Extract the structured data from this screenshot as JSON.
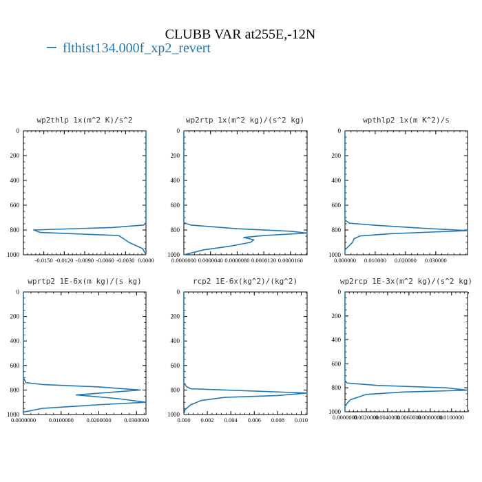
{
  "figure": {
    "title": "CLUBB VAR at255E,-12N",
    "legend": {
      "label": "flthist134.000f_xp2_revert",
      "color": "#1f77b4"
    }
  },
  "chart_data": [
    {
      "type": "line",
      "title": "wp2thlp  1x(m^2 K)/s^2",
      "series": [
        {
          "name": "flthist134.000f_xp2_revert",
          "points": [
            [
              0.0,
              0
            ],
            [
              0.0,
              200
            ],
            [
              0.0,
              400
            ],
            [
              0.0,
              600
            ],
            [
              0.0,
              740
            ],
            [
              -0.0003,
              760
            ],
            [
              -0.005,
              780
            ],
            [
              -0.0165,
              800
            ],
            [
              -0.0155,
              820
            ],
            [
              -0.004,
              845
            ],
            [
              -0.0033,
              870
            ],
            [
              -0.0025,
              900
            ],
            [
              -0.0005,
              950
            ],
            [
              0.0,
              1000
            ]
          ]
        }
      ],
      "xlim": [
        -0.018,
        0.0
      ],
      "ylim": [
        1000,
        0
      ],
      "xticks": [
        "-0.0150",
        "-0.0120",
        "-0.0090",
        "-0.0060",
        "-0.0030",
        "0.0000"
      ],
      "xtick_values": [
        -0.015,
        -0.012,
        -0.009,
        -0.006,
        -0.003,
        0.0
      ],
      "yticks": [
        "0",
        "200",
        "400",
        "600",
        "800",
        "1000"
      ],
      "ytick_values": [
        0,
        200,
        400,
        600,
        800,
        1000
      ]
    },
    {
      "type": "line",
      "title": "wp2rtp  1x(m^2 kg)/(s^2 kg)",
      "series": [
        {
          "name": "flthist134.000f_xp2_revert",
          "points": [
            [
              0.0,
              0
            ],
            [
              0.0,
              600
            ],
            [
              0.0,
              740
            ],
            [
              1e-06,
              760
            ],
            [
              8e-06,
              790
            ],
            [
              1.6e-05,
              810
            ],
            [
              1.85e-05,
              825
            ],
            [
              1.2e-05,
              845
            ],
            [
              9e-06,
              860
            ],
            [
              1.05e-05,
              880
            ],
            [
              1e-05,
              900
            ],
            [
              7e-06,
              930
            ],
            [
              3e-06,
              960
            ],
            [
              0.0,
              1000
            ]
          ]
        }
      ],
      "xlim": [
        0.0,
        1.85e-05
      ],
      "ylim": [
        1000,
        0
      ],
      "xticks": [
        "0.0000000",
        "0.0000040",
        "0.0000080",
        "0.0000120",
        "0.0000160"
      ],
      "xtick_values": [
        0.0,
        4e-06,
        8e-06,
        1.2e-05,
        1.6e-05
      ],
      "yticks": [
        "0",
        "200",
        "400",
        "600",
        "800",
        "1000"
      ],
      "ytick_values": [
        0,
        200,
        400,
        600,
        800,
        1000
      ]
    },
    {
      "type": "line",
      "title": "wpthlp2  1x(m K^2)/s",
      "series": [
        {
          "name": "flthist134.000f_xp2_revert",
          "points": [
            [
              0.0,
              0
            ],
            [
              0.0,
              600
            ],
            [
              0.0,
              720
            ],
            [
              0.0015,
              745
            ],
            [
              0.009,
              760
            ],
            [
              0.025,
              785
            ],
            [
              0.0405,
              805
            ],
            [
              0.015,
              830
            ],
            [
              0.005,
              848
            ],
            [
              0.003,
              870
            ],
            [
              0.0025,
              900
            ],
            [
              0.0,
              960
            ],
            [
              0.0,
              1000
            ]
          ]
        }
      ],
      "xlim": [
        0.0,
        0.0405
      ],
      "ylim": [
        1000,
        0
      ],
      "xticks": [
        "0.000000",
        "0.010000",
        "0.020000",
        "0.030000"
      ],
      "xtick_values": [
        0.0,
        0.01,
        0.02,
        0.03
      ],
      "yticks": [
        "0",
        "200",
        "400",
        "600",
        "800",
        "1000"
      ],
      "ytick_values": [
        0,
        200,
        400,
        600,
        800,
        1000
      ]
    },
    {
      "type": "line",
      "title": "wprtp2  1E-6x(m kg)/(s kg)",
      "series": [
        {
          "name": "flthist134.000f_xp2_revert",
          "points": [
            [
              0.0,
              0
            ],
            [
              0.0,
              600
            ],
            [
              0.0,
              700
            ],
            [
              0.0007,
              740
            ],
            [
              0.005,
              755
            ],
            [
              0.02,
              775
            ],
            [
              0.031,
              800
            ],
            [
              0.014,
              840
            ],
            [
              0.025,
              870
            ],
            [
              0.0325,
              900
            ],
            [
              0.02,
              920
            ],
            [
              0.005,
              950
            ],
            [
              0.0,
              980
            ],
            [
              0.0,
              1000
            ]
          ]
        }
      ],
      "xlim": [
        0.0,
        0.0325
      ],
      "ylim": [
        1000,
        0
      ],
      "xticks": [
        "0.0000000",
        "0.0100000",
        "0.0200000",
        "0.0300000"
      ],
      "xtick_values": [
        0.0,
        0.01,
        0.02,
        0.03
      ],
      "yticks": [
        "0",
        "200",
        "400",
        "600",
        "800",
        "1000"
      ],
      "ytick_values": [
        0,
        200,
        400,
        600,
        800,
        1000
      ]
    },
    {
      "type": "line",
      "title": "rcp2  1E-6x(kg^2)/(kg^2)",
      "series": [
        {
          "name": "flthist134.000f_xp2_revert",
          "points": [
            [
              0.0,
              0
            ],
            [
              0.0,
              600
            ],
            [
              0.0,
              740
            ],
            [
              0.0002,
              770
            ],
            [
              0.0006,
              790
            ],
            [
              0.005,
              805
            ],
            [
              0.0105,
              825
            ],
            [
              0.008,
              845
            ],
            [
              0.0035,
              860
            ],
            [
              0.0015,
              885
            ],
            [
              0.0006,
              920
            ],
            [
              0.0001,
              960
            ],
            [
              0.0,
              1000
            ]
          ]
        }
      ],
      "xlim": [
        0.0,
        0.0105
      ],
      "ylim": [
        1000,
        0
      ],
      "xticks": [
        "0.000",
        "0.002",
        "0.004",
        "0.006",
        "0.008",
        "0.010"
      ],
      "xtick_values": [
        0.0,
        0.002,
        0.004,
        0.006,
        0.008,
        0.01
      ],
      "yticks": [
        "0",
        "200",
        "400",
        "600",
        "800",
        "1000"
      ],
      "ytick_values": [
        0,
        200,
        400,
        600,
        800,
        1000
      ]
    },
    {
      "type": "line",
      "title": "wp2rcp  1E-3x(m^2 kg)/(s^2 kg)",
      "series": [
        {
          "name": "flthist134.000f_xp2_revert",
          "points": [
            [
              0.0,
              0
            ],
            [
              0.0,
              600
            ],
            [
              0.0,
              740
            ],
            [
              0.0002,
              760
            ],
            [
              0.003,
              780
            ],
            [
              0.0095,
              800
            ],
            [
              0.0115,
              820
            ],
            [
              0.0055,
              835
            ],
            [
              0.002,
              855
            ],
            [
              0.0015,
              870
            ],
            [
              0.0005,
              900
            ],
            [
              0.0,
              950
            ],
            [
              0.0,
              1000
            ]
          ]
        }
      ],
      "xlim": [
        0.0,
        0.0115
      ],
      "ylim": [
        1000,
        0
      ],
      "xticks": [
        "0.0000000",
        "0.0020000",
        "0.0040000",
        "0.0060000",
        "0.0080000",
        "0.0100000"
      ],
      "xtick_values": [
        0.0,
        0.002,
        0.004,
        0.006,
        0.008,
        0.01
      ],
      "yticks": [
        "0",
        "200",
        "400",
        "600",
        "800",
        "1000"
      ],
      "ytick_values": [
        0,
        200,
        400,
        600,
        800,
        1000
      ]
    }
  ]
}
